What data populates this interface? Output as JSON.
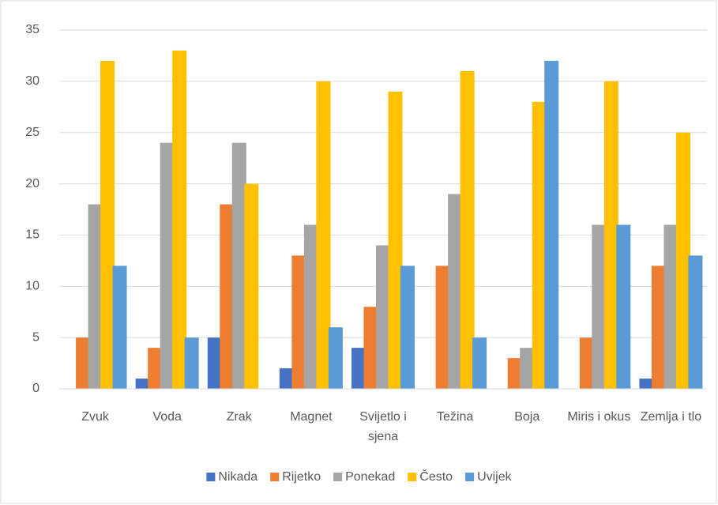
{
  "chart_data": {
    "type": "bar",
    "categories": [
      "Zvuk",
      "Voda",
      "Zrak",
      "Magnet",
      "Svijetlo i sjena",
      "Težina",
      "Boja",
      "Miris i okus",
      "Zemlja i tlo"
    ],
    "series": [
      {
        "name": "Nikada",
        "color": "#4472c4",
        "values": [
          0,
          1,
          5,
          2,
          4,
          0,
          0,
          0,
          1
        ]
      },
      {
        "name": "Rijetko",
        "color": "#ed7d31",
        "values": [
          5,
          4,
          18,
          13,
          8,
          12,
          3,
          5,
          12
        ]
      },
      {
        "name": "Ponekad",
        "color": "#a5a5a5",
        "values": [
          18,
          24,
          24,
          16,
          14,
          19,
          4,
          16,
          16
        ]
      },
      {
        "name": "Često",
        "color": "#ffc000",
        "values": [
          32,
          33,
          20,
          30,
          29,
          31,
          28,
          30,
          25
        ]
      },
      {
        "name": "Uvijek",
        "color": "#5b9bd5",
        "values": [
          12,
          5,
          0,
          6,
          12,
          5,
          32,
          16,
          13
        ]
      }
    ],
    "ylim": [
      0,
      35
    ],
    "yticks": [
      0,
      5,
      10,
      15,
      20,
      25,
      30,
      35
    ],
    "grid": true,
    "legend": "bottom"
  }
}
